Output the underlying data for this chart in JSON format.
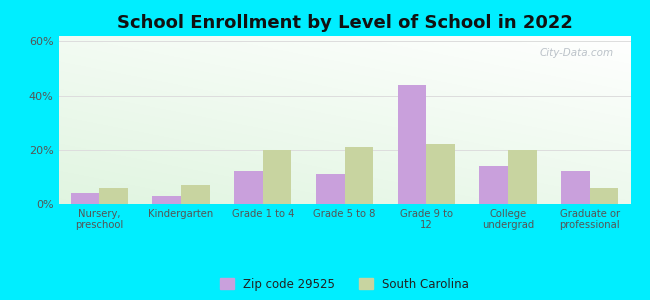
{
  "title": "School Enrollment by Level of School in 2022",
  "categories": [
    "Nursery,\npreschool",
    "Kindergarten",
    "Grade 1 to 4",
    "Grade 5 to 8",
    "Grade 9 to\n12",
    "College\nundergrad",
    "Graduate or\nprofessional"
  ],
  "zip_values": [
    4.0,
    3.0,
    12.0,
    11.0,
    44.0,
    14.0,
    12.0
  ],
  "sc_values": [
    6.0,
    7.0,
    20.0,
    21.0,
    22.0,
    20.0,
    6.0
  ],
  "zip_color": "#c9a0dc",
  "sc_color": "#c8d4a0",
  "zip_label": "Zip code 29525",
  "sc_label": "South Carolina",
  "ylim": [
    0,
    62
  ],
  "yticks": [
    0,
    20,
    40,
    60
  ],
  "yticklabels": [
    "0%",
    "20%",
    "40%",
    "60%"
  ],
  "outer_background": "#00EEFF",
  "watermark": "City-Data.com",
  "title_fontsize": 13,
  "bar_width": 0.35,
  "gradient_colors_bottom_left": "#c8eec8",
  "gradient_colors_top_right": "#f8fff8",
  "grid_color": "#dddddd",
  "tick_label_color": "#555555"
}
